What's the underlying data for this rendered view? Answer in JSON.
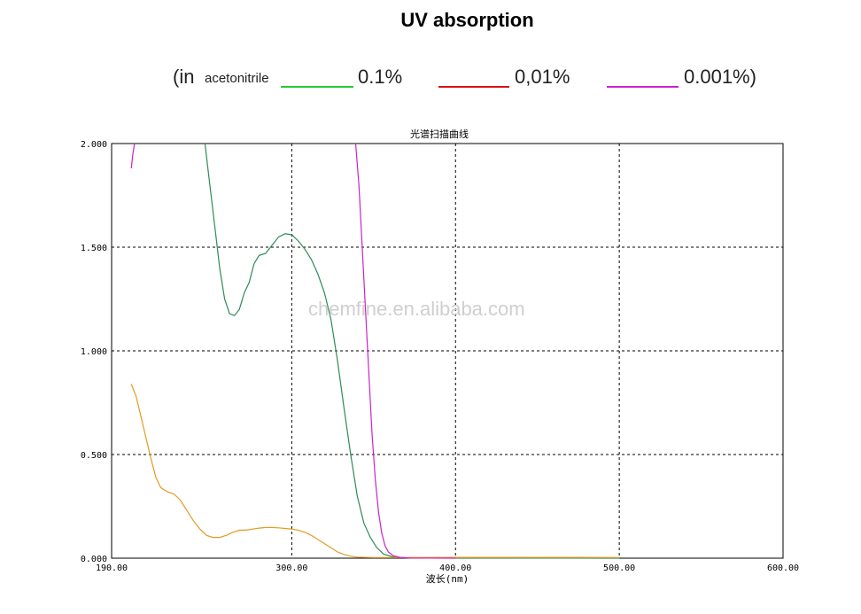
{
  "header": {
    "title": "UV absorption",
    "legend_prefix": "(in",
    "solvent": "acetonitrile",
    "legend_items": [
      {
        "label": "0.1%",
        "color": "#22cc33"
      },
      {
        "label": "0,01%",
        "color": "#dd1111"
      },
      {
        "label": "0.001%)",
        "color": "#cc22cc"
      }
    ]
  },
  "watermark": "chemfine.en.alibaba.com",
  "chart_data": {
    "type": "line",
    "title": "光谱扫描曲线",
    "xlabel": "波长(nm)",
    "ylabel": "",
    "xlim": [
      190,
      600
    ],
    "ylim": [
      0,
      2
    ],
    "x_ticks": [
      "190.00",
      "300.00",
      "400.00",
      "500.00",
      "600.00"
    ],
    "y_ticks": [
      "0.000",
      "0.500",
      "1.000",
      "1.500",
      "2.000"
    ],
    "grid": true,
    "series": [
      {
        "color": "#2e8b57",
        "points": [
          [
            247,
            2.0
          ],
          [
            250,
            1.8
          ],
          [
            253,
            1.6
          ],
          [
            256,
            1.4
          ],
          [
            259,
            1.25
          ],
          [
            262,
            1.18
          ],
          [
            265,
            1.17
          ],
          [
            268,
            1.2
          ],
          [
            271,
            1.28
          ],
          [
            274,
            1.33
          ],
          [
            277,
            1.42
          ],
          [
            280,
            1.46
          ],
          [
            284,
            1.47
          ],
          [
            288,
            1.51
          ],
          [
            292,
            1.55
          ],
          [
            296,
            1.565
          ],
          [
            300,
            1.56
          ],
          [
            304,
            1.53
          ],
          [
            308,
            1.49
          ],
          [
            312,
            1.44
          ],
          [
            316,
            1.37
          ],
          [
            320,
            1.28
          ],
          [
            324,
            1.15
          ],
          [
            328,
            0.95
          ],
          [
            332,
            0.72
          ],
          [
            336,
            0.5
          ],
          [
            340,
            0.3
          ],
          [
            344,
            0.17
          ],
          [
            348,
            0.1
          ],
          [
            352,
            0.05
          ],
          [
            356,
            0.02
          ],
          [
            362,
            0.006
          ],
          [
            370,
            0.002
          ],
          [
            400,
            0.001
          ],
          [
            500,
            0.0
          ]
        ]
      },
      {
        "color": "#e59b1f",
        "points": [
          [
            202,
            0.84
          ],
          [
            205,
            0.78
          ],
          [
            208,
            0.68
          ],
          [
            211,
            0.58
          ],
          [
            214,
            0.48
          ],
          [
            217,
            0.39
          ],
          [
            220,
            0.34
          ],
          [
            224,
            0.32
          ],
          [
            228,
            0.31
          ],
          [
            232,
            0.28
          ],
          [
            236,
            0.23
          ],
          [
            240,
            0.18
          ],
          [
            244,
            0.14
          ],
          [
            248,
            0.11
          ],
          [
            252,
            0.1
          ],
          [
            256,
            0.1
          ],
          [
            260,
            0.11
          ],
          [
            264,
            0.125
          ],
          [
            268,
            0.135
          ],
          [
            272,
            0.135
          ],
          [
            276,
            0.14
          ],
          [
            280,
            0.145
          ],
          [
            284,
            0.148
          ],
          [
            288,
            0.148
          ],
          [
            292,
            0.146
          ],
          [
            296,
            0.143
          ],
          [
            300,
            0.14
          ],
          [
            304,
            0.135
          ],
          [
            308,
            0.125
          ],
          [
            312,
            0.11
          ],
          [
            316,
            0.09
          ],
          [
            320,
            0.07
          ],
          [
            324,
            0.05
          ],
          [
            328,
            0.03
          ],
          [
            332,
            0.018
          ],
          [
            336,
            0.01
          ],
          [
            340,
            0.005
          ],
          [
            350,
            0.003
          ],
          [
            400,
            0.004
          ],
          [
            450,
            0.004
          ],
          [
            475,
            0.004
          ],
          [
            500,
            0.003
          ]
        ]
      },
      {
        "color": "#cc22cc",
        "points": [
          [
            202,
            1.88
          ],
          [
            203,
            1.95
          ],
          [
            204,
            2.0
          ]
        ]
      },
      {
        "color": "#cc22cc",
        "points": [
          [
            339,
            2.0
          ],
          [
            341,
            1.8
          ],
          [
            343,
            1.5
          ],
          [
            345,
            1.2
          ],
          [
            347,
            0.9
          ],
          [
            349,
            0.6
          ],
          [
            351,
            0.38
          ],
          [
            353,
            0.22
          ],
          [
            355,
            0.12
          ],
          [
            357,
            0.06
          ],
          [
            359,
            0.03
          ],
          [
            362,
            0.012
          ],
          [
            366,
            0.004
          ],
          [
            372,
            0.001
          ],
          [
            400,
            0.0
          ]
        ]
      }
    ]
  }
}
